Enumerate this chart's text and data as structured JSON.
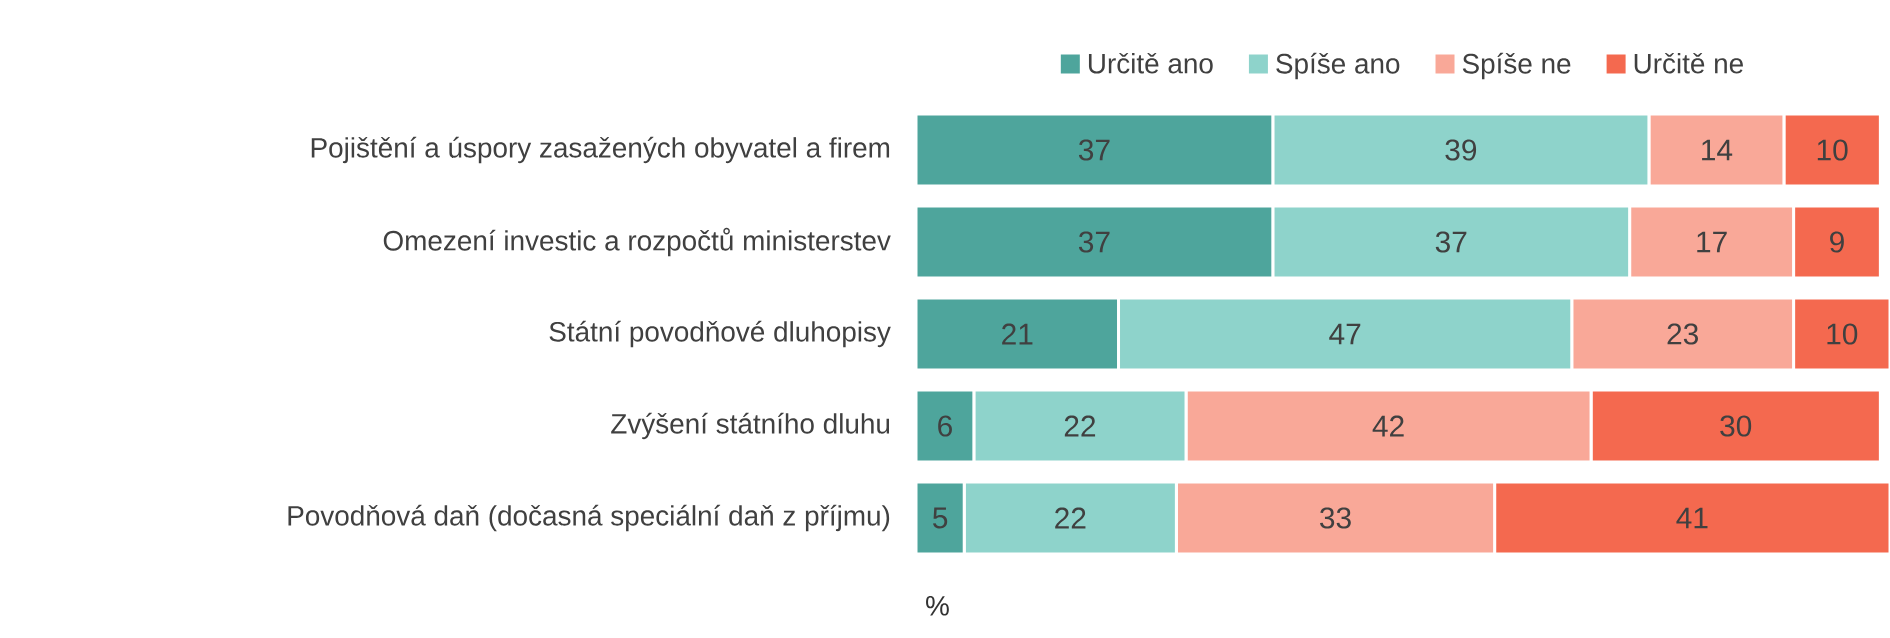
{
  "chart_data": {
    "type": "bar",
    "orientation": "horizontal",
    "stacked": true,
    "data_labels": true,
    "legend": "top",
    "categories": [
      "Pojištění a úspory zasažených obyvatel a firem",
      "Omezení investic a rozpočtů ministerstev",
      "Státní povodňové dluhopisy",
      "Zvýšení státního dluhu",
      "Povodňová daň (dočasná speciální daň z příjmu)"
    ],
    "series": [
      {
        "name": "Určitě ano",
        "color": "#4ea59c",
        "values": [
          37,
          37,
          21,
          6,
          5
        ]
      },
      {
        "name": "Spíše ano",
        "color": "#8ed3cb",
        "values": [
          39,
          37,
          47,
          22,
          22
        ]
      },
      {
        "name": "Spíše ne",
        "color": "#f9a898",
        "values": [
          14,
          17,
          23,
          42,
          33
        ]
      },
      {
        "name": "Určitě ne",
        "color": "#f4694f",
        "values": [
          10,
          9,
          10,
          30,
          41
        ]
      }
    ],
    "annotations": [
      "%"
    ]
  }
}
